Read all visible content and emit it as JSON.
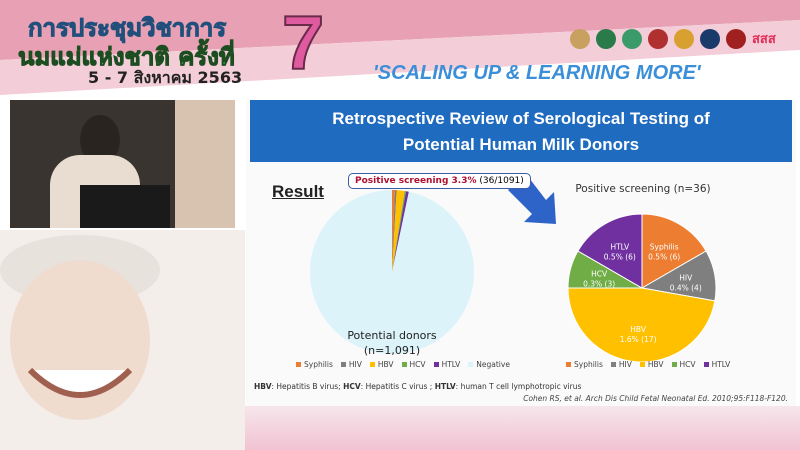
{
  "banner": {
    "title_line1": "การประชุมวิชาการ",
    "title_line2": "นมแม่แห่งชาติ ครั้งที่",
    "date": "5 - 7 สิงหาคม 2563",
    "edition": "7",
    "slogan": "'SCALING UP & LEARNING MORE'",
    "sponsor_text": "สสส",
    "colors": {
      "pink": "#e05aa0",
      "blue": "#3b8fd8"
    }
  },
  "slide": {
    "title_line1": "Retrospective Review of Serological Testing of",
    "title_line2": "Potential Human Milk Donors",
    "result_label": "Result",
    "callout_bold": "Positive screening 3.3%",
    "callout_rest": "(36/1091)",
    "footnote": [
      {
        "abbr": "HBV",
        "text": ": Hepatitis B virus; "
      },
      {
        "abbr": "HCV",
        "text": ": Hepatitis C virus ; "
      },
      {
        "abbr": "HTLV",
        "text": ": human T cell lymphotropic virus"
      }
    ],
    "citation": "Cohen RS, et al. Arch Dis Child Fetal Neonatal Ed. 2010;95:F118-F120."
  },
  "chart_data": [
    {
      "type": "pie",
      "center_label_line1": "Potential donors",
      "center_label_line2": "(n=1,091)",
      "categories": [
        "Syphilis",
        "HIV",
        "HBV",
        "HCV",
        "HTLV",
        "Negative"
      ],
      "values": [
        6,
        4,
        17,
        3,
        6,
        1055
      ],
      "colors": [
        "#ed7d31",
        "#7f7f7f",
        "#ffc000",
        "#70ad47",
        "#7030a0",
        "#ddf3fa"
      ],
      "legend": "bottom"
    },
    {
      "type": "pie",
      "title": "Positive screening (n=36)",
      "categories": [
        "Syphilis",
        "HIV",
        "HBV",
        "HCV",
        "HTLV"
      ],
      "values": [
        6,
        4,
        17,
        3,
        6
      ],
      "labels": [
        "0.5% (6)",
        "0.4% (4)",
        "1.6% (17)",
        "0.3% (3)",
        "0.5% (6)"
      ],
      "colors": [
        "#ed7d31",
        "#7f7f7f",
        "#ffc000",
        "#70ad47",
        "#7030a0"
      ],
      "legend": "bottom"
    }
  ]
}
